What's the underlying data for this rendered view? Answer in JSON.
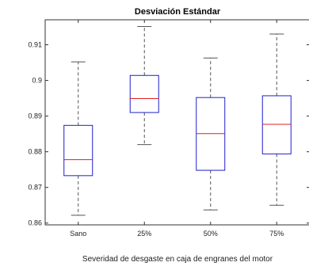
{
  "chart_data": {
    "type": "boxplot",
    "title": "Desviación Estándar",
    "xlabel": "Severidad de desgaste en caja de engranes del motor",
    "ylabel": "",
    "ylim": [
      0.8595,
      0.917
    ],
    "yticks": [
      0.86,
      0.87,
      0.88,
      0.89,
      0.9,
      0.91
    ],
    "ytick_labels": [
      "0.86",
      "0.87",
      "0.88",
      "0.89",
      "0.9",
      "0.91"
    ],
    "categories": [
      "Sano",
      "25%",
      "50%",
      "75%"
    ],
    "boxes": [
      {
        "label": "Sano",
        "whisker_low": 0.8622,
        "q1": 0.8733,
        "median": 0.8778,
        "q3": 0.8874,
        "whisker_high": 0.9052
      },
      {
        "label": "25%",
        "whisker_low": 0.882,
        "q1": 0.891,
        "median": 0.8949,
        "q3": 0.9014,
        "whisker_high": 0.9151
      },
      {
        "label": "50%",
        "whisker_low": 0.8637,
        "q1": 0.8748,
        "median": 0.8851,
        "q3": 0.8952,
        "whisker_high": 0.9063
      },
      {
        "label": "75%",
        "whisker_low": 0.865,
        "q1": 0.8794,
        "median": 0.8877,
        "q3": 0.8957,
        "whisker_high": 0.913
      }
    ],
    "grid": false,
    "colors": {
      "box": "#1f1fcf",
      "median": "#e0201f",
      "whisker": "#555555",
      "axis": "#333333"
    }
  }
}
